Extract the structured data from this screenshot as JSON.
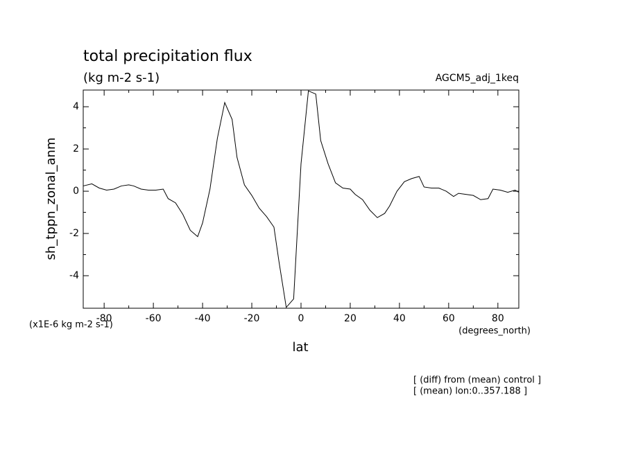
{
  "chart_data": {
    "type": "line",
    "title": "total precipitation flux",
    "subtitle": "(kg m-2 s-1)",
    "run_label": "AGCM5_adj_1keq",
    "y_label": "sh_tppn_zonal_anm",
    "y_units": "(x1E-6 kg m-2 s-1)",
    "x_label": "lat",
    "x_units": "(degrees_north)",
    "notes": [
      "[ (diff) from (mean) control ]",
      "[ (mean) lon:0..357.188 ]"
    ],
    "xlim": [
      -88.5,
      88.5
    ],
    "ylim": [
      -5.54,
      4.79
    ],
    "xticks": [
      -80,
      -60,
      -40,
      -20,
      0,
      20,
      40,
      60,
      80
    ],
    "yticks": [
      -4,
      -2,
      0,
      2,
      4
    ],
    "color": "#000000",
    "x": [
      -88.5,
      -85,
      -82,
      -79,
      -76,
      -73,
      -70,
      -68,
      -65,
      -62,
      -59,
      -56,
      -54,
      -51,
      -48,
      -45,
      -42,
      -40,
      -37,
      -34,
      -31,
      -28,
      -26,
      -23,
      -20,
      -17,
      -14,
      -11,
      -9,
      -6,
      -3,
      0,
      3,
      6,
      8,
      11,
      14,
      17,
      20,
      22,
      25,
      28,
      31,
      34,
      36,
      39,
      42,
      45,
      48,
      50,
      53,
      56,
      59,
      62,
      64,
      67,
      70,
      73,
      76,
      78,
      81,
      84,
      87,
      88.5
    ],
    "values": [
      0.25,
      0.35,
      0.15,
      0.05,
      0.1,
      0.25,
      0.3,
      0.25,
      0.1,
      0.05,
      0.05,
      0.1,
      -0.35,
      -0.55,
      -1.1,
      -1.85,
      -2.15,
      -1.5,
      0.1,
      2.5,
      4.2,
      3.4,
      1.6,
      0.3,
      -0.2,
      -0.8,
      -1.2,
      -1.7,
      -3.3,
      -5.5,
      -5.1,
      1.3,
      4.75,
      4.6,
      2.4,
      1.3,
      0.4,
      0.15,
      0.1,
      -0.15,
      -0.4,
      -0.9,
      -1.25,
      -1.05,
      -0.7,
      0.0,
      0.45,
      0.6,
      0.7,
      0.2,
      0.15,
      0.15,
      0.0,
      -0.25,
      -0.1,
      -0.15,
      -0.2,
      -0.4,
      -0.35,
      0.1,
      0.05,
      -0.05,
      0.05,
      -0.05
    ]
  }
}
